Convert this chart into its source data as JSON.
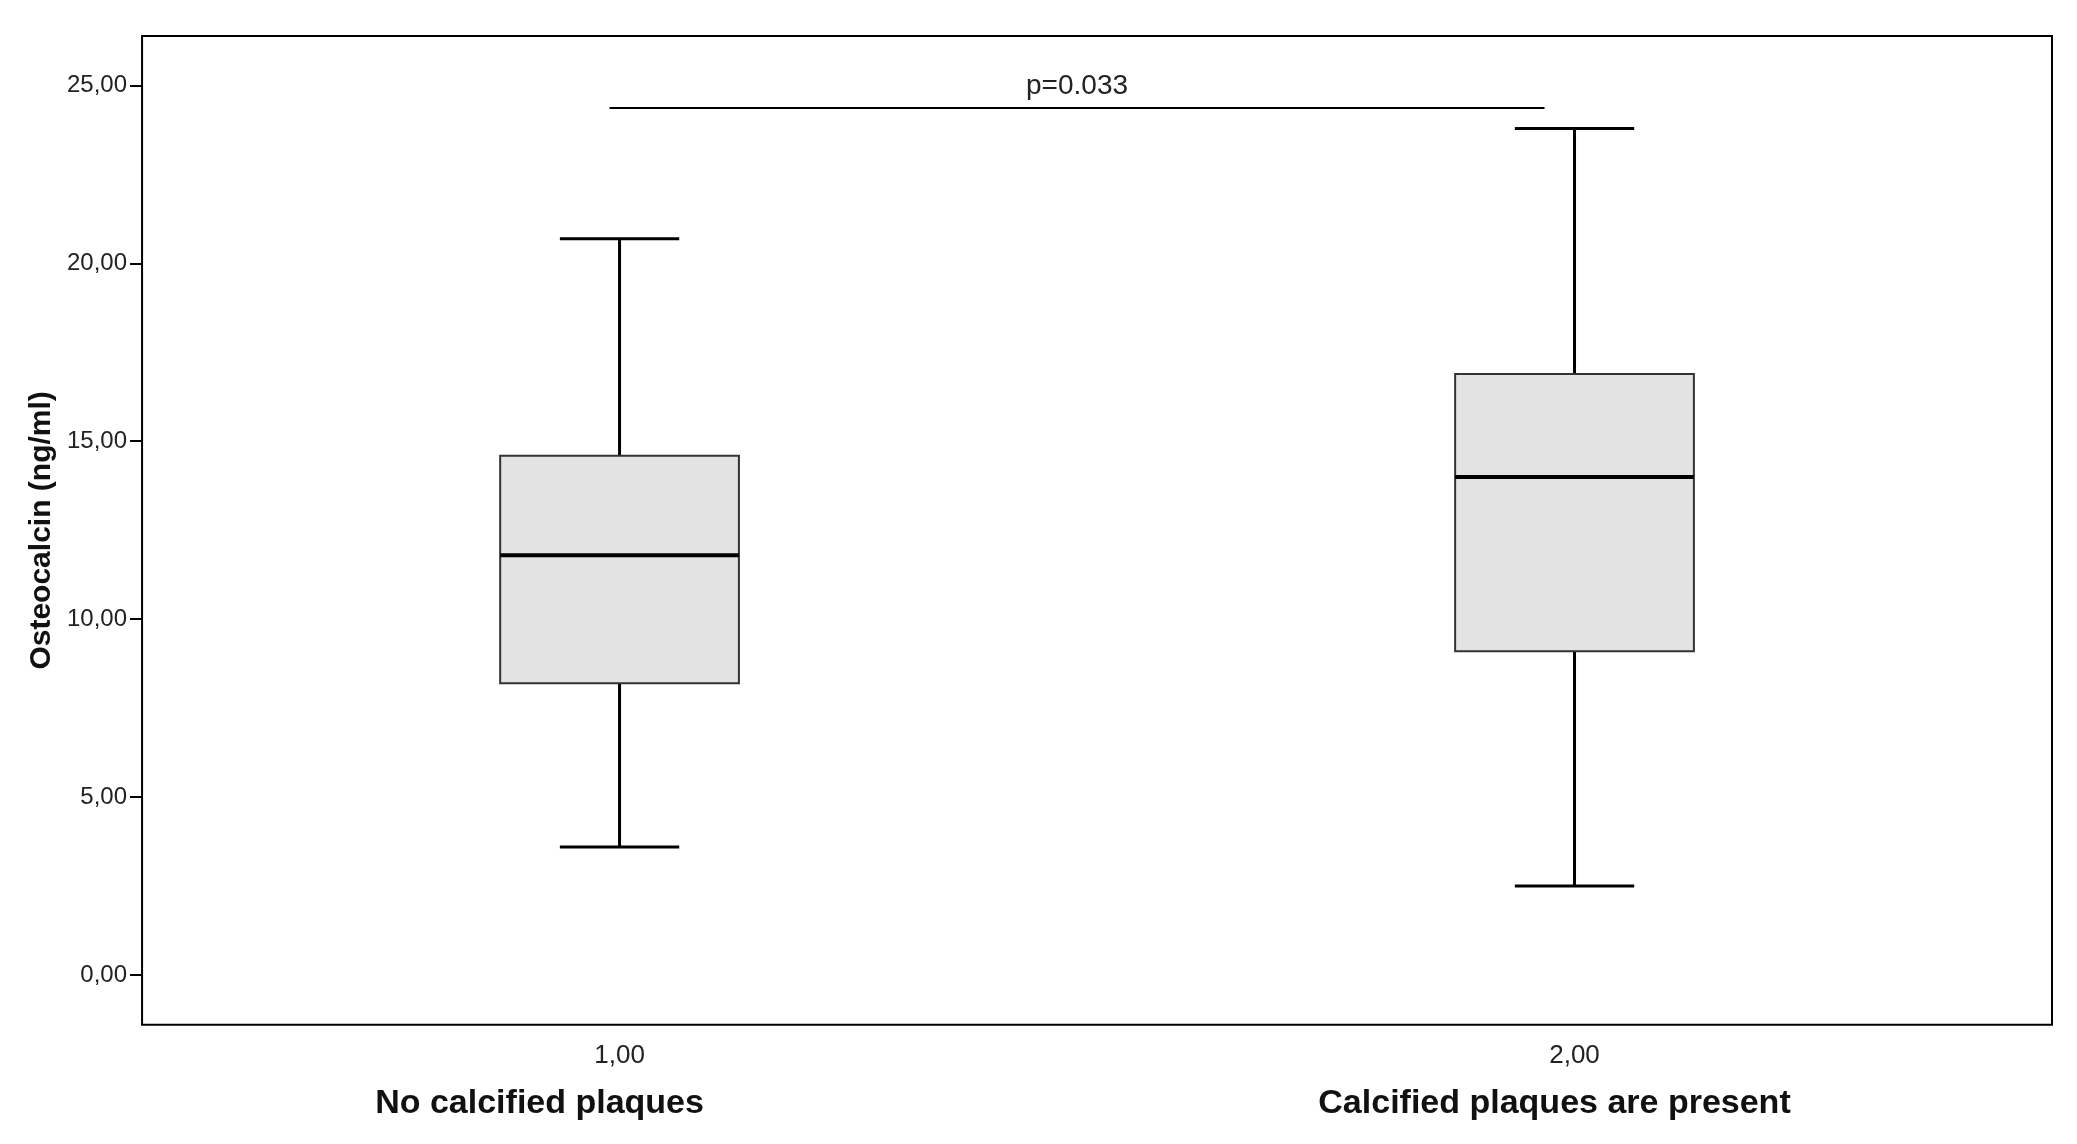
{
  "chart_data": {
    "type": "box",
    "ylabel": "Osteocalcin (ng/ml)",
    "categories": [
      "1,00",
      "2,00"
    ],
    "boxes": [
      {
        "low": 3.6,
        "q1": 8.2,
        "median": 11.8,
        "q3": 14.6,
        "high": 20.7
      },
      {
        "low": 2.5,
        "q1": 9.1,
        "median": 14.0,
        "q3": 16.9,
        "high": 23.8
      }
    ],
    "color": "#e3e3e3",
    "ylim": [
      -1.4,
      26.4
    ],
    "yticks": [
      {
        "value": 0,
        "label": "0,00"
      },
      {
        "value": 5,
        "label": "5,00"
      },
      {
        "value": 10,
        "label": "10,00"
      },
      {
        "value": 15,
        "label": "15,00"
      },
      {
        "value": 20,
        "label": "20,00"
      },
      {
        "value": 25,
        "label": "25,00"
      }
    ],
    "grid": false,
    "legend": false,
    "annotations": [
      "p=0.033",
      "No calcified plaques",
      "Calcified plaques are present"
    ]
  }
}
